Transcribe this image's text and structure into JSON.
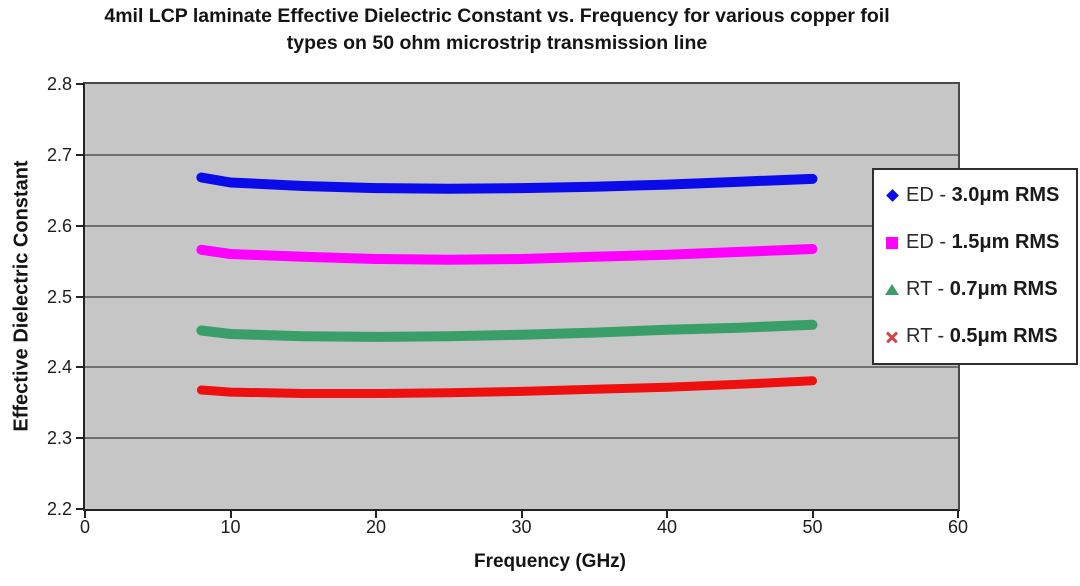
{
  "title": {
    "line1": "4mil LCP laminate Effective Dielectric Constant vs. Frequency for various copper foil",
    "line2": "types on 50 ohm microstrip transmission line"
  },
  "axes": {
    "x_label": "Frequency (GHz)",
    "y_label": "Effective Dielectric Constant"
  },
  "legend": {
    "items": [
      {
        "marker_icon": "diamond-marker-icon",
        "marker_shape": "diamond",
        "color": "#0b0bea",
        "prefix": "ED - ",
        "value": "3.0μm RMS"
      },
      {
        "marker_icon": "square-marker-icon",
        "marker_shape": "square",
        "color": "#ff00ff",
        "prefix": "ED - ",
        "value": "1.5μm RMS"
      },
      {
        "marker_icon": "triangle-marker-icon",
        "marker_shape": "triangle",
        "color": "#3a9e68",
        "prefix": "RT - ",
        "value": "0.7μm RMS"
      },
      {
        "marker_icon": "x-marker-icon",
        "marker_shape": "x",
        "color": "#d04545",
        "prefix": "RT - ",
        "value": "0.5μm RMS"
      }
    ]
  },
  "colors": {
    "plot_background": "#c6c6c6",
    "gridline": "#707070",
    "axis": "#242424",
    "series_blue": "#0b0bea",
    "series_magenta": "#ff00ff",
    "series_green": "#3a9e68",
    "series_red": "#ee0f0f"
  },
  "chart_data": {
    "type": "line",
    "title": "4mil LCP laminate Effective Dielectric Constant vs. Frequency for various copper foil types on 50 ohm microstrip transmission line",
    "xlabel": "Frequency (GHz)",
    "ylabel": "Effective Dielectric Constant",
    "xlim": [
      0,
      60
    ],
    "ylim": [
      2.2,
      2.8
    ],
    "x_ticks": [
      0,
      10,
      20,
      30,
      40,
      50,
      60
    ],
    "x_tick_labels": [
      "0",
      "10",
      "20",
      "30",
      "40",
      "50",
      "60"
    ],
    "y_ticks": [
      2.2,
      2.3,
      2.4,
      2.5,
      2.6,
      2.7,
      2.8
    ],
    "y_tick_labels": [
      "2.2",
      "2.3",
      "2.4",
      "2.5",
      "2.6",
      "2.7",
      "2.8"
    ],
    "grid": "horizontal",
    "legend_position": "right-overlay",
    "x": [
      8,
      10,
      15,
      20,
      25,
      30,
      35,
      40,
      45,
      50
    ],
    "series": [
      {
        "id": "ed-3.0um",
        "name": "ED - 3.0μm RMS",
        "marker": "diamond",
        "color": "#0b0bea",
        "stroke_width": 10,
        "values": [
          2.668,
          2.661,
          2.656,
          2.653,
          2.652,
          2.653,
          2.655,
          2.658,
          2.662,
          2.666
        ]
      },
      {
        "id": "ed-1.5um",
        "name": "ED - 1.5μm RMS",
        "marker": "square",
        "color": "#ff00ff",
        "stroke_width": 10,
        "values": [
          2.566,
          2.56,
          2.556,
          2.553,
          2.552,
          2.553,
          2.556,
          2.559,
          2.563,
          2.567
        ]
      },
      {
        "id": "rt-0.7um",
        "name": "RT - 0.7μm RMS",
        "marker": "triangle",
        "color": "#3a9e68",
        "stroke_width": 10,
        "values": [
          2.452,
          2.447,
          2.444,
          2.443,
          2.444,
          2.446,
          2.449,
          2.453,
          2.456,
          2.46
        ]
      },
      {
        "id": "rt-0.5um",
        "name": "RT - 0.5μm RMS",
        "marker": "x",
        "color": "#ee0f0f",
        "stroke_width": 9,
        "values": [
          2.368,
          2.365,
          2.363,
          2.363,
          2.364,
          2.366,
          2.369,
          2.372,
          2.376,
          2.381
        ]
      }
    ]
  }
}
